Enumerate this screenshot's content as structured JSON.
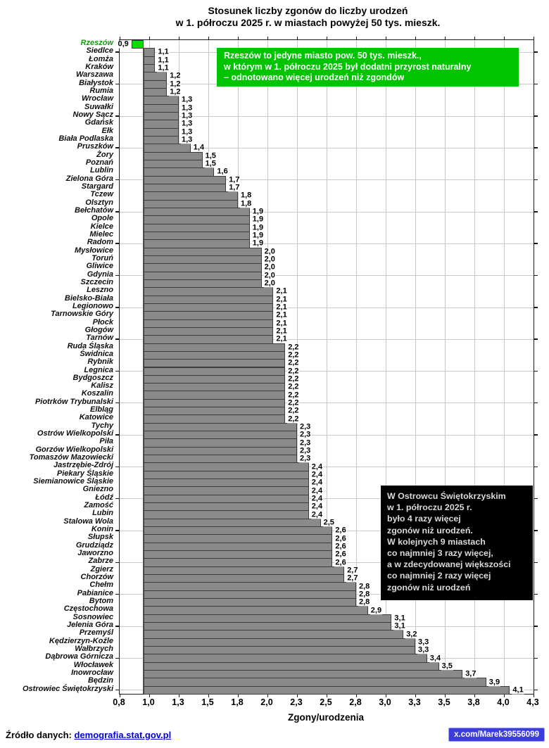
{
  "title": {
    "line1": "Stosunek liczby zgonów do liczby urodzeń",
    "line2": "w 1. półroczu 2025 r. w miastach powyżej 50 tys. mieszk."
  },
  "chart_data": {
    "type": "bar",
    "orientation": "horizontal",
    "xlabel": "Zgony/urodzenia",
    "xlim": [
      0.8,
      4.3
    ],
    "baseline": 1.0,
    "tick_step": 0.25,
    "x_tick_labels": [
      "0,8",
      "1,0",
      "1,3",
      "1,5",
      "1,8",
      "2,0",
      "2,3",
      "2,5",
      "2,8",
      "3,0",
      "3,3",
      "3,5",
      "3,8",
      "4,0",
      "4,3"
    ],
    "grid": true,
    "bar_color": "#8a8a8a",
    "bar_border_color": "#3d3d3d",
    "highlight_index": 0,
    "highlight_color": "#00e000",
    "highlight_label_color": "#0b9e0b",
    "baseline_color": "#c22a1e",
    "categories": [
      "Rzeszów",
      "Siedlce",
      "Łomża",
      "Kraków",
      "Warszawa",
      "Białystok",
      "Rumia",
      "Wrocław",
      "Suwałki",
      "Nowy Sącz",
      "Gdańsk",
      "Ełk",
      "Biała Podlaska",
      "Pruszków",
      "Żory",
      "Poznań",
      "Lublin",
      "Zielona Góra",
      "Stargard",
      "Tczew",
      "Olsztyn",
      "Bełchatów",
      "Opole",
      "Kielce",
      "Mielec",
      "Radom",
      "Mysłowice",
      "Toruń",
      "Gliwice",
      "Gdynia",
      "Szczecin",
      "Leszno",
      "Bielsko-Biała",
      "Legionowo",
      "Tarnowskie Góry",
      "Płock",
      "Głogów",
      "Tarnów",
      "Ruda Śląska",
      "Świdnica",
      "Rybnik",
      "Legnica",
      "Bydgoszcz",
      "Kalisz",
      "Koszalin",
      "Piotrków Trybunalski",
      "Elbląg",
      "Katowice",
      "Tychy",
      "Ostrów Wielkopolski",
      "Piła",
      "Gorzów Wielkopolski",
      "Tomaszów Mazowiecki",
      "Jastrzębie-Zdrój",
      "Piekary Śląskie",
      "Siemianowice Śląskie",
      "Gniezno",
      "Łódź",
      "Zamość",
      "Lubin",
      "Stalowa Wola",
      "Konin",
      "Słupsk",
      "Grudziądz",
      "Jaworzno",
      "Zabrze",
      "Zgierz",
      "Chorzów",
      "Chełm",
      "Pabianice",
      "Bytom",
      "Częstochowa",
      "Sosnowiec",
      "Jelenia Góra",
      "Przemyśl",
      "Kędzierzyn-Koźle",
      "Wałbrzych",
      "Dąbrowa Górnicza",
      "Włocławek",
      "Inowrocław",
      "Będzin",
      "Ostrowiec Świętokrzyski"
    ],
    "values": [
      0.9,
      1.1,
      1.1,
      1.1,
      1.2,
      1.2,
      1.2,
      1.3,
      1.3,
      1.3,
      1.3,
      1.3,
      1.3,
      1.4,
      1.5,
      1.5,
      1.6,
      1.7,
      1.7,
      1.8,
      1.8,
      1.9,
      1.9,
      1.9,
      1.9,
      1.9,
      2.0,
      2.0,
      2.0,
      2.0,
      2.0,
      2.1,
      2.1,
      2.1,
      2.1,
      2.1,
      2.1,
      2.1,
      2.2,
      2.2,
      2.2,
      2.2,
      2.2,
      2.2,
      2.2,
      2.2,
      2.2,
      2.2,
      2.3,
      2.3,
      2.3,
      2.3,
      2.3,
      2.4,
      2.4,
      2.4,
      2.4,
      2.4,
      2.4,
      2.4,
      2.5,
      2.6,
      2.6,
      2.6,
      2.6,
      2.6,
      2.7,
      2.7,
      2.8,
      2.8,
      2.8,
      2.9,
      3.1,
      3.1,
      3.2,
      3.3,
      3.3,
      3.4,
      3.5,
      3.7,
      3.9,
      4.1
    ]
  },
  "annotations": {
    "green_box_lines": [
      "Rzeszów to jedyne miasto pow. 50 tys. mieszk.,",
      "w którym w 1. półroczu 2025 był dodatni przyrost naturalny",
      "– odnotowano więcej urodzeń niż zgondów"
    ],
    "black_box_lines": [
      "W Ostrowcu Świętokrzyskim",
      "w 1. półroczu 2025 r.",
      "było 4 razy więcej",
      "zgonów niż urodzeń.",
      "W kolejnych 9 miastach",
      "co najmniej 3 razy więcej,",
      "a w zdecydowanej większości",
      "co najmniej 2 razy więcej",
      "zgonów niż urodzeń"
    ]
  },
  "footer": {
    "source_label": "Źródło danych: ",
    "source_link": "demografia.stat.gov.pl",
    "badge": "x.com/Marek39556099"
  }
}
